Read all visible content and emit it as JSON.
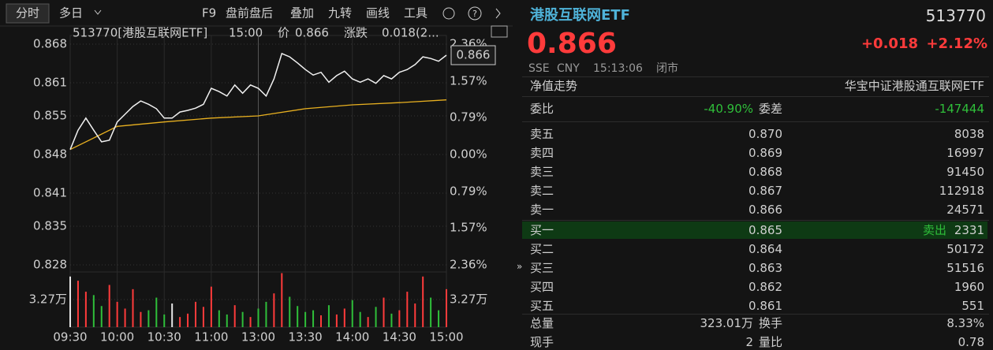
{
  "toolbar": {
    "tabs": [
      "分时",
      "多日"
    ],
    "items": [
      "F9",
      "盘前盘后",
      "叠加",
      "九转",
      "画线",
      "工具"
    ]
  },
  "chart": {
    "header": {
      "code_name": "513770[港股互联网ETF]",
      "time": "15:00",
      "price_label": "价",
      "price": "0.866",
      "change_label": "涨跌",
      "change": "0.018(2..."
    },
    "ylim": [
      0.828,
      0.868
    ],
    "yticks": [
      0.868,
      0.861,
      0.855,
      0.848,
      0.841,
      0.835,
      0.828
    ],
    "y2lim": [
      -2.36,
      2.36
    ],
    "y2ticks": [
      {
        "value": 2.36,
        "label": "2.36%"
      },
      {
        "value": 1.57,
        "label": "1.57%"
      },
      {
        "value": 0.79,
        "label": "0.79%"
      },
      {
        "value": 0,
        "label": "0.00%"
      },
      {
        "value": -0.79,
        "label": "0.79%"
      },
      {
        "value": -1.57,
        "label": "1.57%"
      },
      {
        "value": -2.36,
        "label": "2.36%"
      }
    ],
    "time_labels": [
      "09:30",
      "10:00",
      "10:30",
      "11:00",
      "13:00",
      "13:30",
      "14:00",
      "14:30",
      "15:00"
    ],
    "price": [
      0.8489,
      0.8524,
      0.8546,
      0.8524,
      0.8503,
      0.8506,
      0.8539,
      0.8553,
      0.8567,
      0.8577,
      0.8571,
      0.8563,
      0.8546,
      0.8546,
      0.8557,
      0.856,
      0.8564,
      0.8571,
      0.86,
      0.8594,
      0.8586,
      0.8606,
      0.8591,
      0.8606,
      0.86,
      0.8586,
      0.8617,
      0.8663,
      0.8657,
      0.8646,
      0.8634,
      0.8624,
      0.8629,
      0.8611,
      0.8623,
      0.8631,
      0.8617,
      0.8611,
      0.8617,
      0.8609,
      0.8623,
      0.8617,
      0.8629,
      0.8634,
      0.8643,
      0.8657,
      0.8654,
      0.8649,
      0.866
    ],
    "avg": [
      0.8489,
      0.8531,
      0.8539,
      0.8546,
      0.855,
      0.8563,
      0.857,
      0.8574,
      0.8579
    ],
    "vlim": [
      0,
      6.54
    ],
    "vtick": {
      "value": 3.27,
      "label": "3.27万"
    },
    "volume": [
      6.0,
      5.5,
      4.2,
      3.8,
      2.5,
      5.0,
      3.0,
      2.2,
      4.5,
      1.8,
      2.0,
      3.5,
      1.5,
      2.8,
      1.2,
      1.6,
      3.0,
      2.4,
      4.8,
      2.0,
      1.5,
      2.6,
      1.8,
      1.2,
      2.2,
      3.0,
      4.0,
      6.4,
      3.6,
      2.5,
      1.8,
      2.0,
      1.4,
      2.6,
      1.5,
      2.2,
      3.2,
      1.8,
      1.2,
      2.4,
      3.5,
      1.6,
      2.0,
      4.2,
      2.8,
      6.0,
      3.5,
      2.0,
      4.5
    ]
  },
  "quote": {
    "name": "港股互联网ETF",
    "code": "513770",
    "price": "0.866",
    "change": "+0.018",
    "change_pct": "+2.12%",
    "exchange": "SSE",
    "currency": "CNY",
    "time": "15:13:06",
    "status": "闭市",
    "nav_label": "净值走势",
    "fund_name": "华宝中证港股通互联网ETF",
    "ratio_label": "委比",
    "ratio": "-40.90%",
    "diff_label": "委差",
    "diff": "-147444"
  },
  "asks": [
    {
      "label": "卖五",
      "price": "0.870",
      "volume": "8038"
    },
    {
      "label": "卖四",
      "price": "0.869",
      "volume": "16997"
    },
    {
      "label": "卖三",
      "price": "0.868",
      "volume": "91450"
    },
    {
      "label": "卖二",
      "price": "0.867",
      "volume": "112918"
    },
    {
      "label": "卖一",
      "price": "0.866",
      "volume": "24571"
    }
  ],
  "bids": [
    {
      "label": "买一",
      "price": "0.865",
      "tag": "卖出",
      "volume": "2331"
    },
    {
      "label": "买二",
      "price": "0.864",
      "volume": "50172"
    },
    {
      "label": "买三",
      "price": "0.863",
      "volume": "51516"
    },
    {
      "label": "买四",
      "price": "0.862",
      "volume": "1960"
    },
    {
      "label": "买五",
      "price": "0.861",
      "volume": "551"
    }
  ],
  "stats": [
    {
      "label": "总量",
      "value": "323.01万"
    },
    {
      "label": "换手",
      "value": "8.33%"
    },
    {
      "label": "现手",
      "value": "2"
    },
    {
      "label": "量比",
      "value": "0.78"
    }
  ]
}
